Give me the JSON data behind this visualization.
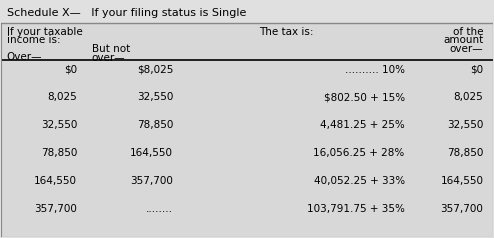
{
  "title": "Schedule X—   If your filing status is Single",
  "bg_color": "#e0e0e0",
  "col1_header_line1": "If your taxable",
  "col1_header_line2": "income is:",
  "col3_header": "The tax is:",
  "col4_header_line1": "of the",
  "col4_header_line2": "amount",
  "col4_header_line3": "over—",
  "col1_sub": "Over—",
  "col2_sub_line1": "But not",
  "col2_sub_line2": "over—",
  "rows": [
    [
      "$0",
      "$8,025",
      ".......... 10%",
      "$0"
    ],
    [
      "8,025",
      "32,550",
      "$802.50 + 15%",
      "8,025"
    ],
    [
      "32,550",
      "78,850",
      "4,481.25 + 25%",
      "32,550"
    ],
    [
      "78,850",
      "164,550",
      "16,056.25 + 28%",
      "78,850"
    ],
    [
      "164,550",
      "357,700",
      "40,052.25 + 33%",
      "164,550"
    ],
    [
      "357,700",
      "........",
      "103,791.75 + 35%",
      "357,700"
    ]
  ],
  "font_size": 7.5,
  "title_font_size": 8.0,
  "line_color": "#555555",
  "thick_line_color": "#000000"
}
